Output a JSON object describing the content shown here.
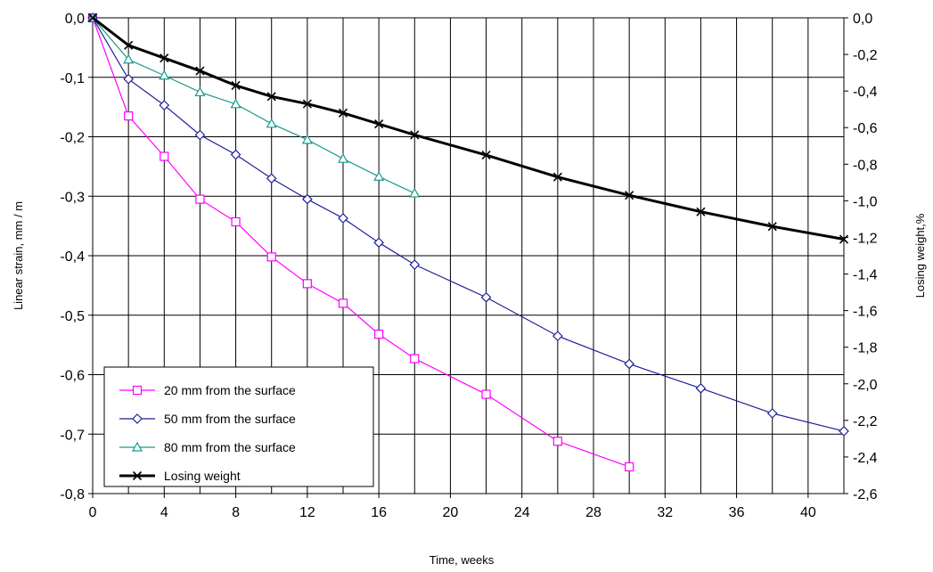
{
  "chart_data": {
    "type": "line",
    "xlabel": "Time, weeks",
    "ylabel_left": "Linear strain, mm / m",
    "ylabel_right": "Losing weight,%",
    "xlim": [
      0,
      42
    ],
    "ylim_left": [
      -0.8,
      0.0
    ],
    "ylim_right": [
      -2.6,
      0.0
    ],
    "x_ticks": [
      0,
      4,
      8,
      12,
      16,
      20,
      24,
      28,
      32,
      36,
      40
    ],
    "x_tick_labels": [
      "0",
      "4",
      "8",
      "12",
      "16",
      "20",
      "24",
      "28",
      "32",
      "36",
      "40"
    ],
    "x_gridlines_every": 2,
    "y_left_ticks": [
      0.0,
      -0.1,
      -0.2,
      -0.3,
      -0.4,
      -0.5,
      -0.6,
      -0.7,
      -0.8
    ],
    "y_left_tick_labels": [
      "0,0",
      "-0,1",
      "-0,2",
      "-0,3",
      "-0,4",
      "-0,5",
      "-0,6",
      "-0,7",
      "-0,8"
    ],
    "y_right_ticks": [
      0.0,
      -0.2,
      -0.4,
      -0.6,
      -0.8,
      -1.0,
      -1.2,
      -1.4,
      -1.6,
      -1.8,
      -2.0,
      -2.2,
      -2.4,
      -2.6
    ],
    "y_right_tick_labels": [
      "0,0",
      "-0,2",
      "-0,4",
      "-0,6",
      "-0,8",
      "-1,0",
      "-1,2",
      "-1,4",
      "-1,6",
      "-1,8",
      "-2,0",
      "-2,2",
      "-2,4",
      "-2,6"
    ],
    "grid": true,
    "legend_position": "bottom-left",
    "series": [
      {
        "name": "20 mm from the surface",
        "axis": "left",
        "color": "#ff00ff",
        "marker": "square",
        "x": [
          0,
          2,
          4,
          6,
          8,
          10,
          12,
          14,
          16,
          18,
          22,
          26,
          30
        ],
        "y": [
          0.0,
          -0.165,
          -0.233,
          -0.305,
          -0.343,
          -0.402,
          -0.447,
          -0.48,
          -0.532,
          -0.573,
          -0.633,
          -0.712,
          -0.755
        ]
      },
      {
        "name": "50 mm from the surface",
        "axis": "left",
        "color": "#1f1f9a",
        "marker": "diamond",
        "x": [
          0,
          2,
          4,
          6,
          8,
          10,
          12,
          14,
          16,
          18,
          22,
          26,
          30,
          34,
          38,
          42
        ],
        "y": [
          0.0,
          -0.103,
          -0.147,
          -0.197,
          -0.23,
          -0.27,
          -0.305,
          -0.337,
          -0.378,
          -0.415,
          -0.47,
          -0.535,
          -0.582,
          -0.623,
          -0.665,
          -0.695
        ]
      },
      {
        "name": "80 mm from the surface",
        "axis": "left",
        "color": "#1a9a8a",
        "marker": "triangle",
        "x": [
          0,
          2,
          4,
          6,
          8,
          10,
          12,
          14,
          16,
          18
        ],
        "y": [
          0.0,
          -0.07,
          -0.097,
          -0.125,
          -0.145,
          -0.178,
          -0.205,
          -0.237,
          -0.267,
          -0.295
        ]
      },
      {
        "name": "Losing weight",
        "axis": "right",
        "color": "#000000",
        "marker": "x",
        "x": [
          0,
          2,
          4,
          6,
          8,
          10,
          12,
          14,
          16,
          18,
          22,
          26,
          30,
          34,
          38,
          42
        ],
        "y": [
          0.0,
          -0.15,
          -0.22,
          -0.29,
          -0.37,
          -0.43,
          -0.47,
          -0.52,
          -0.58,
          -0.64,
          -0.75,
          -0.87,
          -0.97,
          -1.06,
          -1.14,
          -1.21
        ]
      }
    ]
  }
}
